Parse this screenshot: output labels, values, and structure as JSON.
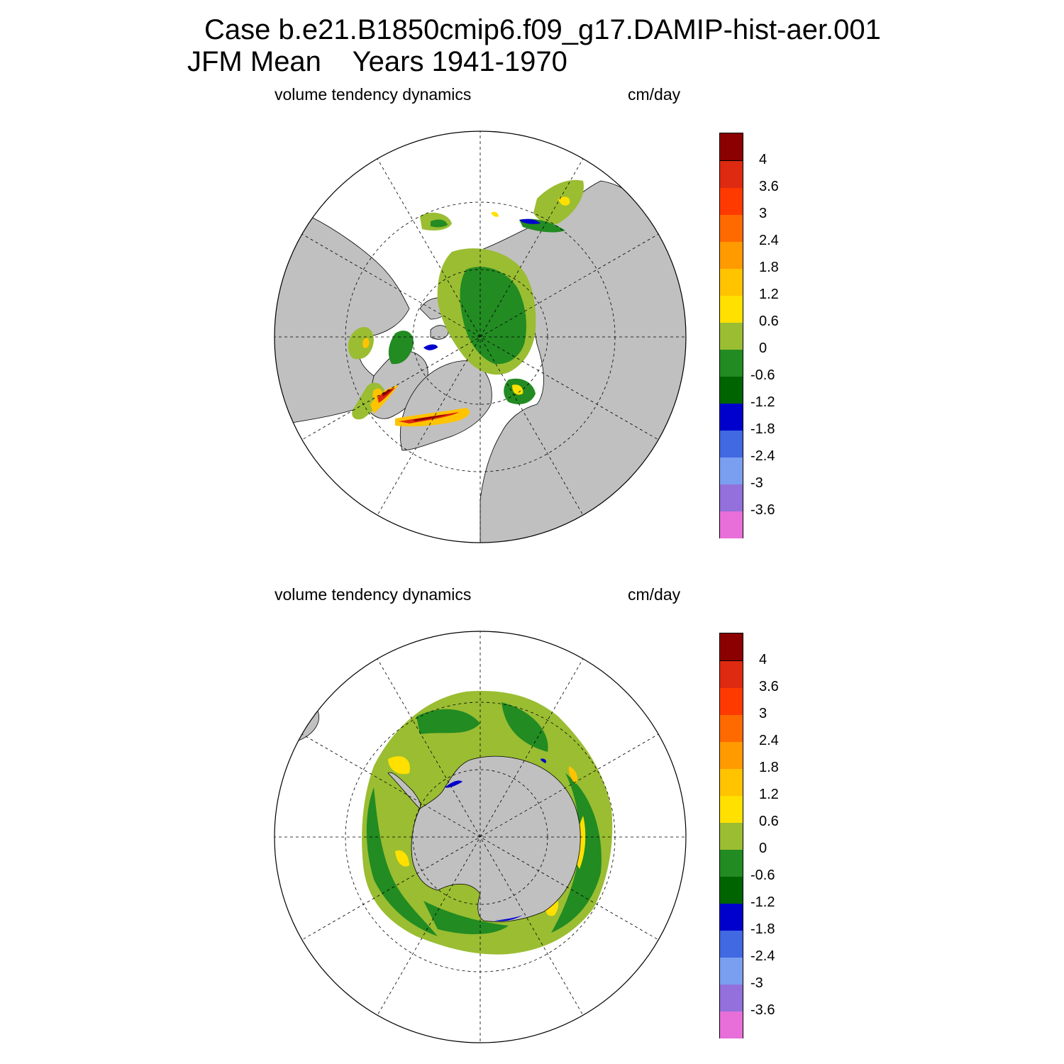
{
  "title": {
    "line1": "Case b.e21.B1850cmip6.f09_g17.DAMIP-hist-aer.001",
    "line2": "JFM Mean    Years 1941-1970"
  },
  "colors": {
    "land": "#c0c0c0",
    "ocean_no_ice": "#ffffff",
    "grid": "#000000"
  },
  "colorbar": {
    "colors": [
      "#e86fd9",
      "#9370db",
      "#7b9ff0",
      "#4169e1",
      "#0000cd",
      "#006400",
      "#228b22",
      "#9abd32",
      "#ffe000",
      "#ffc300",
      "#ff9a00",
      "#ff6a00",
      "#ff3a00",
      "#dd2a10",
      "#8b0000"
    ],
    "labels": [
      "-3.6",
      "-3",
      "-2.4",
      "-1.8",
      "-1.2",
      "-0.6",
      "0",
      "0.6",
      "1.2",
      "1.8",
      "2.4",
      "3",
      "3.6",
      "4"
    ]
  },
  "panels": [
    {
      "hemisphere": "north",
      "variable_label": "volume tendency dynamics",
      "units_label": "cm/day"
    },
    {
      "hemisphere": "south",
      "variable_label": "volume tendency dynamics",
      "units_label": "cm/day"
    }
  ]
}
